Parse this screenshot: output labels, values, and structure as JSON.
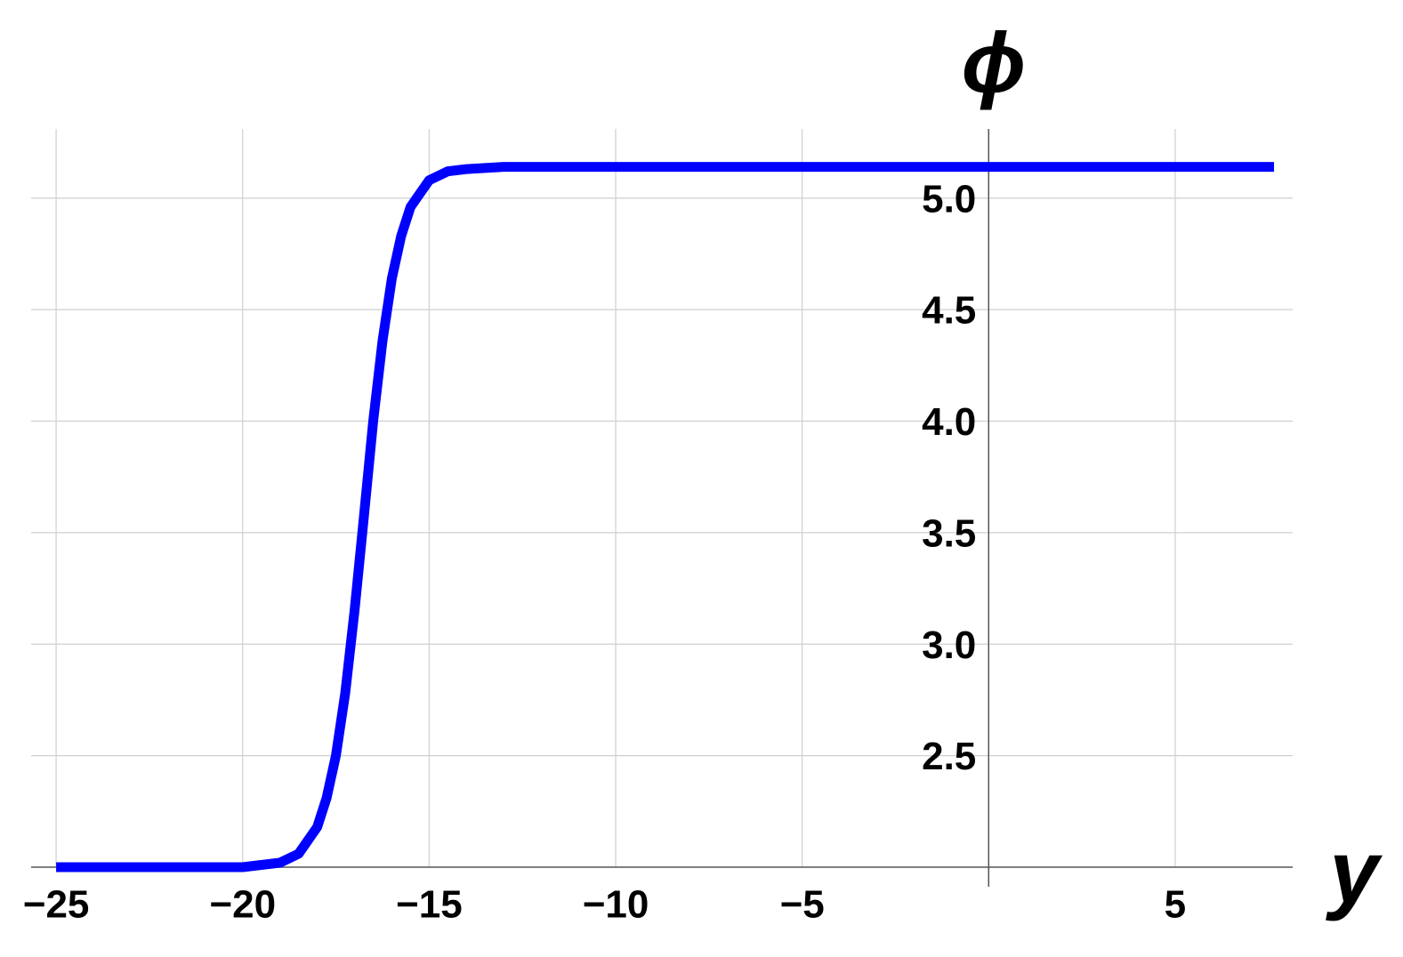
{
  "chart_data": {
    "type": "line",
    "x_label": "y",
    "y_label": "ϕ",
    "x": [
      -25,
      -22,
      -20,
      -19,
      -18.5,
      -18,
      -17.75,
      -17.5,
      -17.25,
      -17,
      -16.75,
      -16.5,
      -16.25,
      -16,
      -15.75,
      -15.5,
      -15,
      -14.5,
      -14,
      -13,
      -10,
      -5,
      0,
      5,
      7.65
    ],
    "series": [
      {
        "color": "#0000ff",
        "values": [
          2.0,
          2.0,
          2.0,
          2.02,
          2.06,
          2.18,
          2.31,
          2.5,
          2.78,
          3.15,
          3.57,
          4.0,
          4.36,
          4.64,
          4.83,
          4.96,
          5.08,
          5.12,
          5.13,
          5.14,
          5.14,
          5.14,
          5.14,
          5.14,
          5.14
        ]
      }
    ],
    "xlim": [
      -25.67,
      8.15
    ],
    "ylim": [
      2.0,
      5.31
    ],
    "xticks": [
      {
        "value": -25,
        "label": "−25"
      },
      {
        "value": -20,
        "label": "−20"
      },
      {
        "value": -15,
        "label": "−15"
      },
      {
        "value": -10,
        "label": "−10"
      },
      {
        "value": -5,
        "label": "−5"
      },
      5
    ],
    "yticks": [
      2.5,
      {
        "value": 3,
        "label": "3.0"
      },
      3.5,
      {
        "value": 4,
        "label": "4.0"
      },
      4.5,
      {
        "value": 5,
        "label": "5.0"
      }
    ],
    "grid": true
  }
}
